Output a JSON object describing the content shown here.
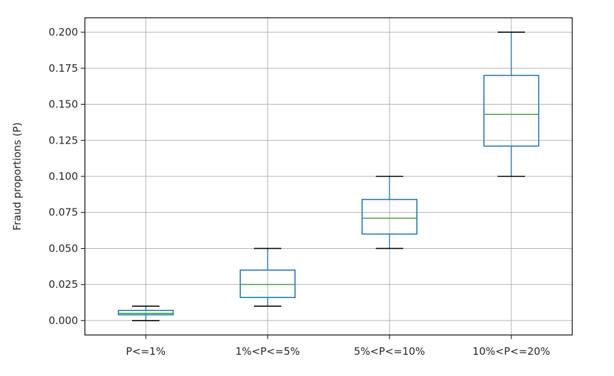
{
  "chart_data": {
    "type": "box",
    "ylabel": "Fraud proportions (P)",
    "xlabel": "",
    "ylim": [
      -0.01,
      0.21
    ],
    "yticks": [
      "0.000",
      "0.025",
      "0.050",
      "0.075",
      "0.100",
      "0.125",
      "0.150",
      "0.175",
      "0.200"
    ],
    "grid": true,
    "categories": [
      "P<=1%",
      "1%<P<=5%",
      "5%<P<=10%",
      "10%<P<=20%"
    ],
    "boxes": [
      {
        "min": 0.0,
        "q1": 0.004,
        "median": 0.005,
        "q3": 0.007,
        "max": 0.01
      },
      {
        "min": 0.01,
        "q1": 0.016,
        "median": 0.025,
        "q3": 0.035,
        "max": 0.05
      },
      {
        "min": 0.05,
        "q1": 0.06,
        "median": 0.071,
        "q3": 0.084,
        "max": 0.1
      },
      {
        "min": 0.1,
        "q1": 0.121,
        "median": 0.143,
        "q3": 0.17,
        "max": 0.2
      }
    ],
    "colors": {
      "box": "#1f77b4",
      "median": "#2ca02c",
      "whisker": "#000000",
      "grid": "#b0b0b0"
    }
  }
}
